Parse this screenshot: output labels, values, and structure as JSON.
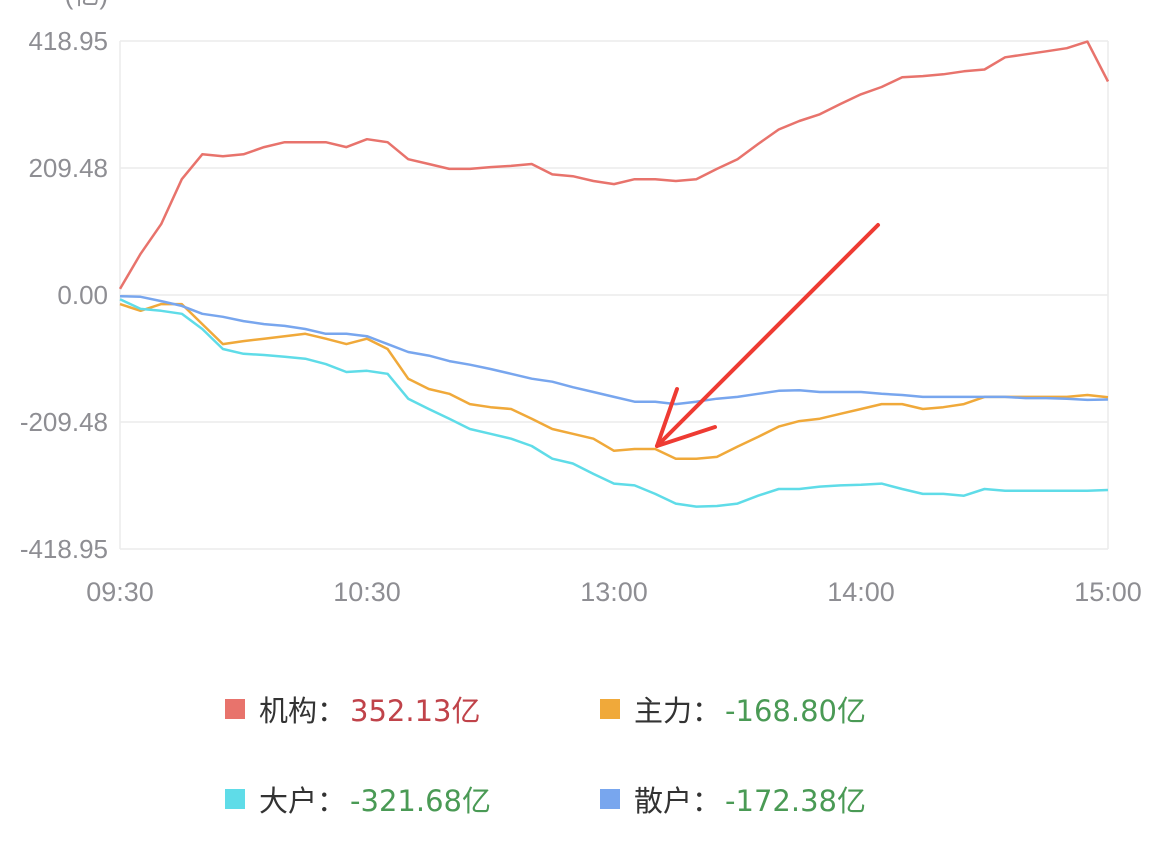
{
  "chart_data": {
    "type": "line",
    "unit_label": "(亿)",
    "ylim": [
      -418.95,
      418.95
    ],
    "y_ticks": [
      "418.95",
      "209.48",
      "0.00",
      "-209.48",
      "-418.95"
    ],
    "y_tick_values": [
      418.95,
      209.48,
      0,
      -209.48,
      -418.95
    ],
    "x_ticks": [
      "09:30",
      "10:30",
      "13:00",
      "14:00",
      "15:00"
    ],
    "grid": true,
    "legend_placement": "bottom",
    "x": [
      "09:30",
      "09:35",
      "09:40",
      "09:45",
      "09:50",
      "09:55",
      "10:00",
      "10:05",
      "10:10",
      "10:15",
      "10:20",
      "10:25",
      "10:30",
      "10:35",
      "10:40",
      "10:45",
      "10:50",
      "10:55",
      "11:00",
      "11:05",
      "11:10",
      "11:15",
      "11:20",
      "11:25",
      "13:00",
      "13:05",
      "13:10",
      "13:15",
      "13:20",
      "13:25",
      "13:30",
      "13:35",
      "13:40",
      "13:45",
      "13:50",
      "13:55",
      "14:00",
      "14:05",
      "14:10",
      "14:15",
      "14:20",
      "14:25",
      "14:30",
      "14:35",
      "14:40",
      "14:45",
      "14:50",
      "14:55",
      "15:00"
    ],
    "series": [
      {
        "name": "机构",
        "color": "#e8736c",
        "legend_value": "352.13亿",
        "value_color": "#c0434a",
        "values": [
          10,
          68,
          117,
          191,
          232,
          229,
          232,
          244,
          252,
          252,
          252,
          244,
          257,
          252,
          224,
          216,
          208,
          208,
          211,
          213,
          216,
          199,
          196,
          188,
          183,
          191,
          191,
          188,
          191,
          208,
          224,
          249,
          273,
          287,
          298,
          315,
          331,
          343,
          359,
          361,
          364,
          369,
          372,
          392,
          397,
          402,
          407,
          418,
          352.13
        ]
      },
      {
        "name": "主力",
        "color": "#f0a93a",
        "legend_value": "-168.80亿",
        "value_color": "#4a9a55",
        "values": [
          -15,
          -26,
          -15,
          -15,
          -48,
          -81,
          -76,
          -72,
          -68,
          -64,
          -72,
          -81,
          -72,
          -89,
          -138,
          -155,
          -163,
          -180,
          -185,
          -188,
          -204,
          -221,
          -229,
          -237,
          -257,
          -254,
          -254,
          -270,
          -270,
          -267,
          -250,
          -234,
          -217,
          -208,
          -204,
          -196,
          -188,
          -180,
          -180,
          -188,
          -185,
          -180,
          -168,
          -168,
          -168,
          -168,
          -168,
          -165,
          -168.8
        ]
      },
      {
        "name": "大户",
        "color": "#5fdce8",
        "legend_value": "-321.68亿",
        "value_color": "#4a9a55",
        "values": [
          -7,
          -23,
          -26,
          -31,
          -56,
          -89,
          -97,
          -99,
          -102,
          -105,
          -114,
          -127,
          -125,
          -130,
          -171,
          -188,
          -204,
          -221,
          -229,
          -237,
          -249,
          -270,
          -278,
          -295,
          -311,
          -314,
          -328,
          -344,
          -349,
          -348,
          -344,
          -331,
          -320,
          -320,
          -316,
          -314,
          -313,
          -311,
          -320,
          -328,
          -328,
          -331,
          -320,
          -323,
          -323,
          -323,
          -323,
          -323,
          -321.68
        ]
      },
      {
        "name": "散户",
        "color": "#78a6ee",
        "legend_value": "-172.38亿",
        "value_color": "#4a9a55",
        "values": [
          -2,
          -3,
          -10,
          -18,
          -31,
          -36,
          -43,
          -48,
          -51,
          -56,
          -64,
          -64,
          -68,
          -81,
          -94,
          -100,
          -109,
          -115,
          -122,
          -130,
          -138,
          -143,
          -152,
          -160,
          -168,
          -176,
          -176,
          -180,
          -176,
          -171,
          -168,
          -163,
          -158,
          -157,
          -160,
          -160,
          -160,
          -163,
          -165,
          -168,
          -168,
          -168,
          -168,
          -168,
          -170,
          -170,
          -171,
          -173,
          -172.38
        ]
      }
    ]
  },
  "legend_separator": "："
}
